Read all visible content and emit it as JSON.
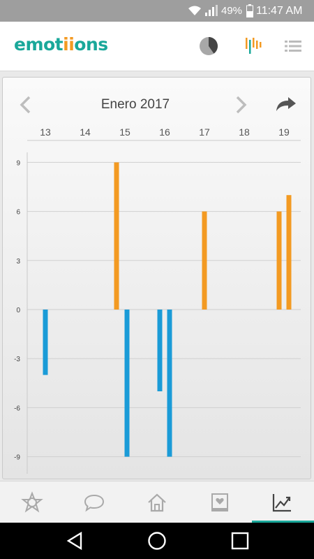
{
  "status_bar": {
    "battery": "49%",
    "time": "11:47 AM",
    "icons": [
      "wifi-icon",
      "signal-icon",
      "battery-icon"
    ]
  },
  "app_bar": {
    "logo_prefix": "emot",
    "logo_highlight": "ii",
    "logo_suffix": "ons",
    "icons": [
      "pie-chart-icon",
      "bars-chart-icon",
      "list-icon"
    ]
  },
  "chart_header": {
    "month_label": "Enero 2017",
    "icons": [
      "chevron-left-icon",
      "chevron-right-icon",
      "share-arrow-icon"
    ]
  },
  "colors": {
    "positive": "#f39a22",
    "negative": "#1a9bd7",
    "accent": "#1aa89a"
  },
  "chart_data": {
    "type": "bar",
    "title": "Enero 2017",
    "categories": [
      "13",
      "14",
      "15",
      "16",
      "17",
      "18",
      "19"
    ],
    "ylim": [
      -10,
      10
    ],
    "yticks": [
      9,
      6,
      3,
      0,
      -3,
      -6,
      -9
    ],
    "grid": true,
    "bars": [
      {
        "day": "13",
        "value": -4
      },
      {
        "day": "15",
        "value": 9
      },
      {
        "day": "15",
        "value": -9
      },
      {
        "day": "16",
        "value": -5
      },
      {
        "day": "16",
        "value": -9
      },
      {
        "day": "17",
        "value": 6
      },
      {
        "day": "19",
        "value": 6
      },
      {
        "day": "19",
        "value": 7
      }
    ]
  },
  "bottom_nav": {
    "items": [
      "star-emblem-icon",
      "chat-bubble-icon",
      "home-icon",
      "album-heart-icon",
      "trend-chart-icon"
    ],
    "active": "trend-chart-icon"
  },
  "system_nav": [
    "back-icon",
    "home-circle-icon",
    "recents-icon"
  ]
}
